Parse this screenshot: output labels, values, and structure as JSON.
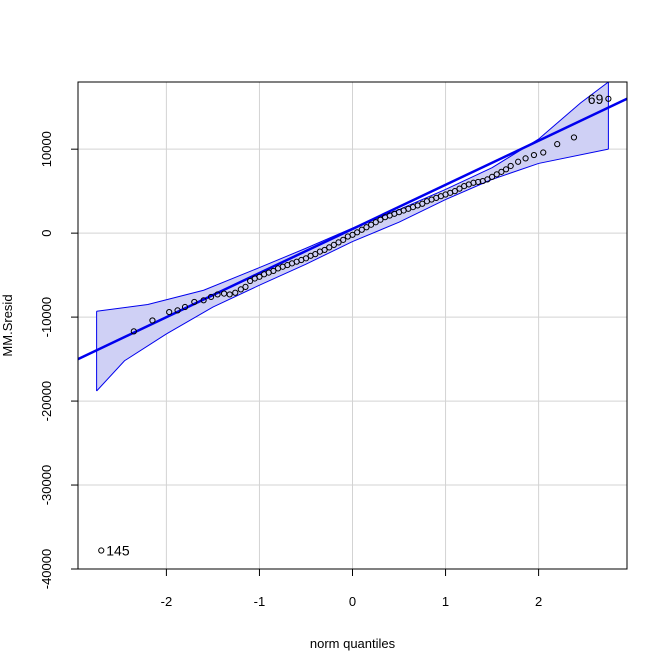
{
  "chart_data": {
    "type": "scatter",
    "title": "",
    "xlabel": "norm quantiles",
    "ylabel": "MM.Sresid",
    "xlim": [
      -2.95,
      2.95
    ],
    "ylim": [
      -40000,
      18000
    ],
    "x_ticks": [
      -2,
      -1,
      0,
      1,
      2
    ],
    "y_ticks": [
      -40000,
      -30000,
      -20000,
      -10000,
      0,
      10000
    ],
    "grid": true,
    "legend": "none",
    "reference_line": {
      "from": [
        -2.95,
        -15000
      ],
      "to": [
        2.95,
        16000
      ]
    },
    "envelope": {
      "upper": [
        [
          -2.75,
          -9300
        ],
        [
          -2.2,
          -8500
        ],
        [
          -1.6,
          -6800
        ],
        [
          -1.0,
          -4100
        ],
        [
          -0.5,
          -1800
        ],
        [
          0.0,
          600
        ],
        [
          0.5,
          2800
        ],
        [
          1.0,
          5200
        ],
        [
          1.5,
          7800
        ],
        [
          2.0,
          11200
        ],
        [
          2.45,
          15500
        ],
        [
          2.75,
          18000
        ]
      ],
      "lower": [
        [
          -2.75,
          -18800
        ],
        [
          -2.45,
          -15200
        ],
        [
          -2.0,
          -12000
        ],
        [
          -1.5,
          -8800
        ],
        [
          -1.0,
          -6200
        ],
        [
          -0.5,
          -3700
        ],
        [
          0.0,
          -1000
        ],
        [
          0.5,
          1300
        ],
        [
          1.0,
          4000
        ],
        [
          1.5,
          6400
        ],
        [
          2.0,
          8300
        ],
        [
          2.75,
          10000
        ]
      ]
    },
    "points": [
      [
        -2.7,
        -37800
      ],
      [
        -2.35,
        -11700
      ],
      [
        -2.15,
        -10400
      ],
      [
        -1.97,
        -9400
      ],
      [
        -1.88,
        -9200
      ],
      [
        -1.8,
        -8800
      ],
      [
        -1.7,
        -8200
      ],
      [
        -1.6,
        -8000
      ],
      [
        -1.52,
        -7600
      ],
      [
        -1.45,
        -7300
      ],
      [
        -1.38,
        -7200
      ],
      [
        -1.32,
        -7300
      ],
      [
        -1.26,
        -7100
      ],
      [
        -1.2,
        -6700
      ],
      [
        -1.15,
        -6400
      ],
      [
        -1.1,
        -5700
      ],
      [
        -1.05,
        -5400
      ],
      [
        -1.0,
        -5200
      ],
      [
        -0.95,
        -4900
      ],
      [
        -0.9,
        -4700
      ],
      [
        -0.85,
        -4500
      ],
      [
        -0.8,
        -4200
      ],
      [
        -0.75,
        -4000
      ],
      [
        -0.7,
        -3800
      ],
      [
        -0.65,
        -3600
      ],
      [
        -0.6,
        -3400
      ],
      [
        -0.55,
        -3200
      ],
      [
        -0.5,
        -3000
      ],
      [
        -0.45,
        -2700
      ],
      [
        -0.4,
        -2500
      ],
      [
        -0.35,
        -2200
      ],
      [
        -0.3,
        -2000
      ],
      [
        -0.25,
        -1700
      ],
      [
        -0.2,
        -1400
      ],
      [
        -0.15,
        -1100
      ],
      [
        -0.1,
        -800
      ],
      [
        -0.05,
        -400
      ],
      [
        0.0,
        -200
      ],
      [
        0.05,
        100
      ],
      [
        0.1,
        400
      ],
      [
        0.15,
        700
      ],
      [
        0.2,
        1000
      ],
      [
        0.25,
        1300
      ],
      [
        0.3,
        1600
      ],
      [
        0.35,
        1900
      ],
      [
        0.4,
        2100
      ],
      [
        0.45,
        2300
      ],
      [
        0.5,
        2500
      ],
      [
        0.55,
        2700
      ],
      [
        0.6,
        2900
      ],
      [
        0.65,
        3100
      ],
      [
        0.7,
        3300
      ],
      [
        0.75,
        3500
      ],
      [
        0.8,
        3800
      ],
      [
        0.85,
        4000
      ],
      [
        0.9,
        4200
      ],
      [
        0.95,
        4400
      ],
      [
        1.0,
        4600
      ],
      [
        1.05,
        4800
      ],
      [
        1.1,
        5000
      ],
      [
        1.15,
        5300
      ],
      [
        1.2,
        5600
      ],
      [
        1.25,
        5800
      ],
      [
        1.3,
        6000
      ],
      [
        1.35,
        6100
      ],
      [
        1.4,
        6200
      ],
      [
        1.45,
        6400
      ],
      [
        1.5,
        6700
      ],
      [
        1.55,
        7000
      ],
      [
        1.6,
        7300
      ],
      [
        1.65,
        7600
      ],
      [
        1.7,
        8000
      ],
      [
        1.78,
        8500
      ],
      [
        1.86,
        8900
      ],
      [
        1.95,
        9300
      ],
      [
        2.05,
        9600
      ],
      [
        2.2,
        10600
      ],
      [
        2.38,
        11400
      ],
      [
        2.75,
        16000
      ]
    ],
    "point_labels": [
      {
        "text": "145",
        "x": -2.7,
        "y": -37800,
        "side": "right"
      },
      {
        "text": "69",
        "x": 2.75,
        "y": 16000,
        "side": "left"
      }
    ],
    "colors": {
      "envelope_fill": "#cfd0f5",
      "envelope_line": "#0000ee",
      "reference_line": "#0000ee",
      "grid": "#d3d3d3",
      "points": "#000000"
    }
  }
}
